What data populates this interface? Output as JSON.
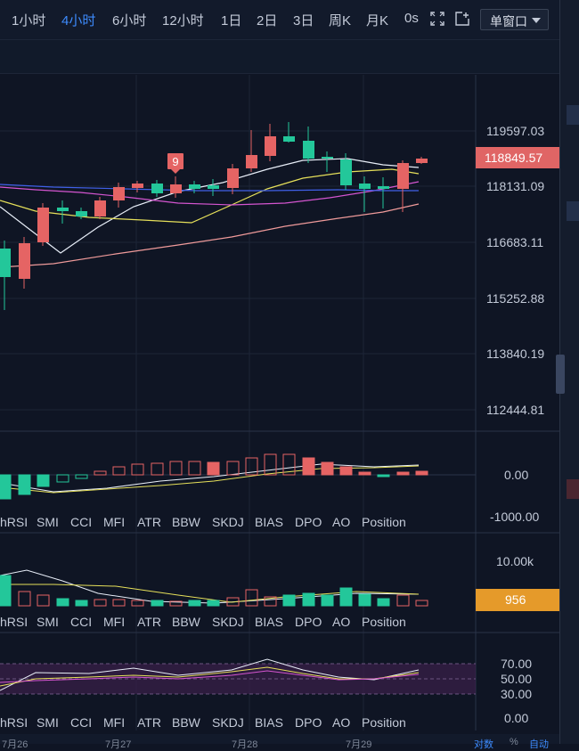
{
  "toolbar": {
    "timeframes": [
      "1小时",
      "4小时",
      "6小时",
      "12小时",
      "1日",
      "2日",
      "3日",
      "周K",
      "月K",
      "0s"
    ],
    "active_timeframe": "4小时",
    "window_mode": "单窗口",
    "icons": [
      "fullscreen-icon",
      "add-window-icon"
    ]
  },
  "price_axis": {
    "labels": [
      "119597.03",
      "118131.09",
      "116683.11",
      "115252.88",
      "113840.19",
      "112444.81"
    ],
    "current_price": "118849.57"
  },
  "macd_axis": {
    "labels": [
      "0.00",
      "-1000.00"
    ]
  },
  "volume_axis": {
    "labels": [
      "10.00k"
    ],
    "current_volume": "956"
  },
  "rsi_axis": {
    "labels": [
      "70.00",
      "50.00",
      "30.00",
      "0.00"
    ]
  },
  "indicator_tabs": [
    "hRSI",
    "SMI",
    "CCI",
    "MFI",
    "ATR",
    "BBW",
    "SKDJ",
    "BIAS",
    "DPO",
    "AO",
    "Position"
  ],
  "signal_marker": "9",
  "bottom_bar": {
    "dates": [
      "7月26",
      "7月27",
      "7月28",
      "7月29"
    ],
    "controls": [
      "对数",
      "%",
      "自动"
    ]
  },
  "colors": {
    "up": "#23c79a",
    "down": "#e56464",
    "accent": "#3d8bfd",
    "volume_tag": "#e59a2a"
  }
}
